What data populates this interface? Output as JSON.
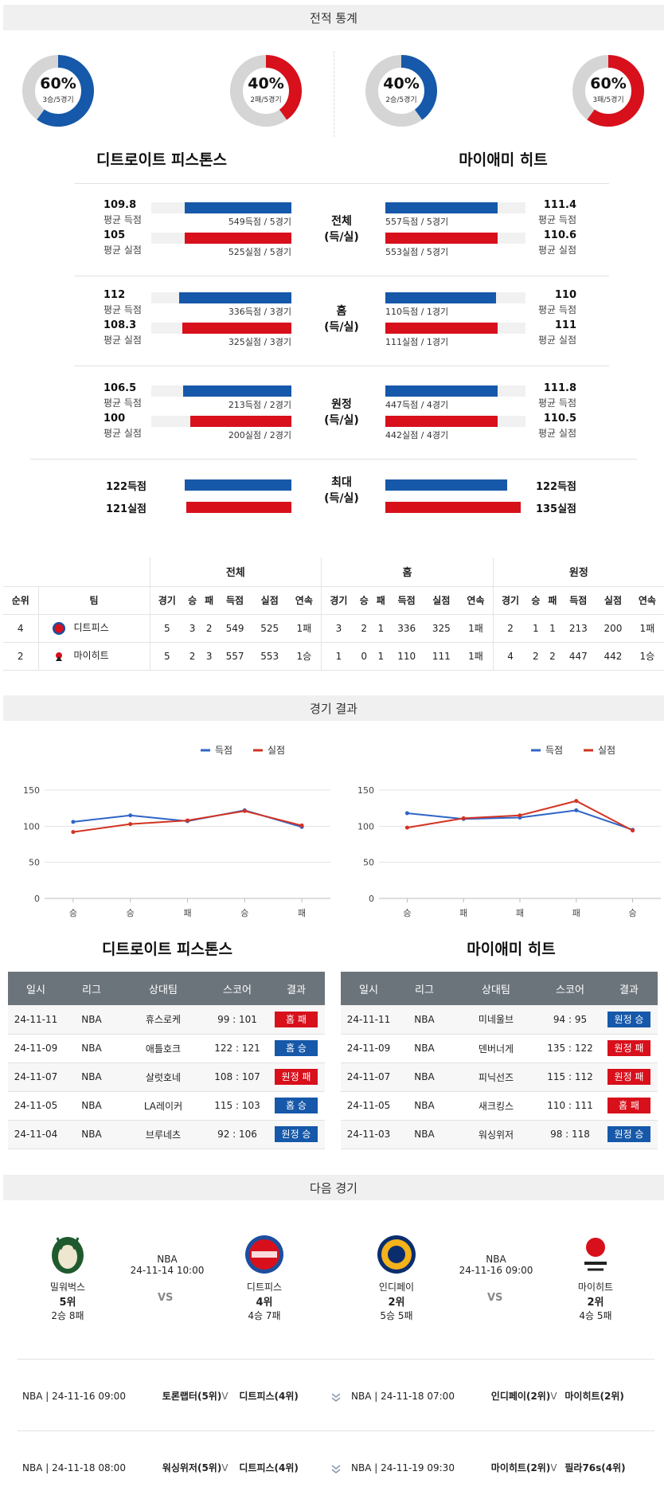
{
  "sections": {
    "stats": "전적 통계",
    "results": "경기 결과",
    "next": "다음 경기"
  },
  "teams": {
    "left": {
      "full": "디트로이트 피스톤스",
      "short": "디트피스"
    },
    "right": {
      "full": "마이애미 히트",
      "short": "마이히트"
    }
  },
  "donuts": [
    {
      "pct": "60%",
      "sub": "3승/5경기",
      "value": 0.6,
      "color": "#1658a9"
    },
    {
      "pct": "40%",
      "sub": "2패/5경기",
      "value": 0.4,
      "color": "#d7101c"
    },
    {
      "pct": "40%",
      "sub": "2승/5경기",
      "value": 0.4,
      "color": "#1658a9"
    },
    {
      "pct": "60%",
      "sub": "3패/5경기",
      "value": 0.6,
      "color": "#d7101c"
    }
  ],
  "stat_groups": [
    {
      "label1": "전체",
      "label2": "(득/실)",
      "left": {
        "score": "109.8",
        "score_lbl": "평균 득점",
        "score_cap": "549득점 / 5경기",
        "score_val": 0.76,
        "allow": "105",
        "allow_lbl": "평균 실점",
        "allow_cap": "525실점 / 5경기",
        "allow_val": 0.76
      },
      "right": {
        "score": "111.4",
        "score_lbl": "평균 득점",
        "score_cap": "557득점 / 5경기",
        "score_val": 0.8,
        "allow": "110.6",
        "allow_lbl": "평균 실점",
        "allow_cap": "553실점 / 5경기",
        "allow_val": 0.8
      }
    },
    {
      "label1": "홈",
      "label2": "(득/실)",
      "left": {
        "score": "112",
        "score_lbl": "평균 득점",
        "score_cap": "336득점 / 3경기",
        "score_val": 0.8,
        "allow": "108.3",
        "allow_lbl": "평균 실점",
        "allow_cap": "325실점 / 3경기",
        "allow_val": 0.78
      },
      "right": {
        "score": "110",
        "score_lbl": "평균 득점",
        "score_cap": "110득점 / 1경기",
        "score_val": 0.79,
        "allow": "111",
        "allow_lbl": "평균 실점",
        "allow_cap": "111실점 / 1경기",
        "allow_val": 0.8
      }
    },
    {
      "label1": "원정",
      "label2": "(득/실)",
      "left": {
        "score": "106.5",
        "score_lbl": "평균 득점",
        "score_cap": "213득점 / 2경기",
        "score_val": 0.77,
        "allow": "100",
        "allow_lbl": "평균 실점",
        "allow_cap": "200실점 / 2경기",
        "allow_val": 0.72
      },
      "right": {
        "score": "111.8",
        "score_lbl": "평균 득점",
        "score_cap": "447득점 / 4경기",
        "score_val": 0.8,
        "allow": "110.5",
        "allow_lbl": "평균 실점",
        "allow_cap": "442실점 / 4경기",
        "allow_val": 0.8
      }
    }
  ],
  "max_group": {
    "label1": "최대",
    "label2": "(득/실)",
    "left": {
      "score": "122득점",
      "allow": "121실점",
      "score_val": 0.87,
      "allow_val": 0.86
    },
    "right": {
      "score": "122득점",
      "allow": "135실점",
      "score_val": 0.9,
      "allow_val": 1.0
    }
  },
  "ranking": {
    "group_headers": [
      "전체",
      "홈",
      "원정"
    ],
    "col_rank": "순위",
    "col_team": "팀",
    "cols": [
      "경기",
      "승",
      "패",
      "득점",
      "실점",
      "연속"
    ],
    "rows": [
      {
        "rank": "4",
        "team": "디트피스",
        "stats": [
          "5",
          "3",
          "2",
          "549",
          "525",
          "1패",
          "3",
          "2",
          "1",
          "336",
          "325",
          "1패",
          "2",
          "1",
          "1",
          "213",
          "200",
          "1패"
        ]
      },
      {
        "rank": "2",
        "team": "마이히트",
        "stats": [
          "5",
          "2",
          "3",
          "557",
          "553",
          "1승",
          "1",
          "0",
          "1",
          "110",
          "111",
          "1패",
          "4",
          "2",
          "2",
          "447",
          "442",
          "1승"
        ]
      }
    ]
  },
  "chart_data": [
    {
      "type": "line",
      "categories": [
        "승",
        "승",
        "패",
        "승",
        "패"
      ],
      "ylim": [
        0,
        150
      ],
      "yticks": [
        0,
        50,
        100,
        150
      ],
      "legend": "top-right",
      "series": [
        {
          "name": "득점",
          "color": "#2f65c8",
          "values": [
            106,
            115,
            107,
            122,
            99
          ]
        },
        {
          "name": "실점",
          "color": "#d23322",
          "values": [
            92,
            103,
            108,
            121,
            101
          ]
        }
      ]
    },
    {
      "type": "line",
      "categories": [
        "승",
        "패",
        "패",
        "패",
        "승"
      ],
      "ylim": [
        0,
        150
      ],
      "yticks": [
        0,
        50,
        100,
        150
      ],
      "legend": "top-right",
      "series": [
        {
          "name": "득점",
          "color": "#2f65c8",
          "values": [
            118,
            110,
            112,
            122,
            95
          ]
        },
        {
          "name": "실점",
          "color": "#d23322",
          "values": [
            98,
            111,
            115,
            135,
            94
          ]
        }
      ]
    }
  ],
  "games_headers": [
    "일시",
    "리그",
    "상대팀",
    "스코어",
    "결과"
  ],
  "games": {
    "left": [
      {
        "date": "24-11-11",
        "league": "NBA",
        "opp": "휴스로케",
        "score": "99 : 101",
        "result": "홈 패",
        "cls": "home-loss"
      },
      {
        "date": "24-11-09",
        "league": "NBA",
        "opp": "애틀호크",
        "score": "122 : 121",
        "result": "홈 승",
        "cls": "home-win"
      },
      {
        "date": "24-11-07",
        "league": "NBA",
        "opp": "살럿호네",
        "score": "108 : 107",
        "result": "원정 패",
        "cls": "away-loss"
      },
      {
        "date": "24-11-05",
        "league": "NBA",
        "opp": "LA레이커",
        "score": "115 : 103",
        "result": "홈 승",
        "cls": "home-win"
      },
      {
        "date": "24-11-04",
        "league": "NBA",
        "opp": "브루네츠",
        "score": "92 : 106",
        "result": "원정 승",
        "cls": "away-win"
      }
    ],
    "right": [
      {
        "date": "24-11-11",
        "league": "NBA",
        "opp": "미네울브",
        "score": "94 : 95",
        "result": "원정 승",
        "cls": "away-win"
      },
      {
        "date": "24-11-09",
        "league": "NBA",
        "opp": "덴버너게",
        "score": "135 : 122",
        "result": "원정 패",
        "cls": "away-loss"
      },
      {
        "date": "24-11-07",
        "league": "NBA",
        "opp": "피닉선즈",
        "score": "115 : 112",
        "result": "원정 패",
        "cls": "away-loss"
      },
      {
        "date": "24-11-05",
        "league": "NBA",
        "opp": "새크킹스",
        "score": "110 : 111",
        "result": "홈 패",
        "cls": "home-loss"
      },
      {
        "date": "24-11-03",
        "league": "NBA",
        "opp": "워싱위저",
        "score": "98 : 118",
        "result": "원정 승",
        "cls": "away-win"
      }
    ]
  },
  "next_matches": [
    {
      "league": "NBA",
      "datetime": "24-11-14 10:00",
      "vs": "VS",
      "home": {
        "name": "밀워벅스",
        "rank": "5위",
        "record": "2승 8패"
      },
      "away": {
        "name": "디트피스",
        "rank": "4위",
        "record": "4승 7패"
      }
    },
    {
      "league": "NBA",
      "datetime": "24-11-16 09:00",
      "vs": "VS",
      "home": {
        "name": "인디페이",
        "rank": "2위",
        "record": "5승 5패"
      },
      "away": {
        "name": "마이히트",
        "rank": "2위",
        "record": "4승 5패"
      }
    }
  ],
  "upcoming": [
    {
      "info": "NBA | 24-11-16 09:00",
      "a": "토론랩터(5위)",
      "b": "디트피스(4위)"
    },
    {
      "info": "NBA | 24-11-18 07:00",
      "a": "인디페이(2위)",
      "b": "마이히트(2위)"
    },
    {
      "info": "NBA | 24-11-18 08:00",
      "a": "워싱위저(5위)",
      "b": "디트피스(4위)"
    },
    {
      "info": "NBA | 24-11-19 09:30",
      "a": "마이히트(2위)",
      "b": "필라76s(4위)"
    }
  ]
}
